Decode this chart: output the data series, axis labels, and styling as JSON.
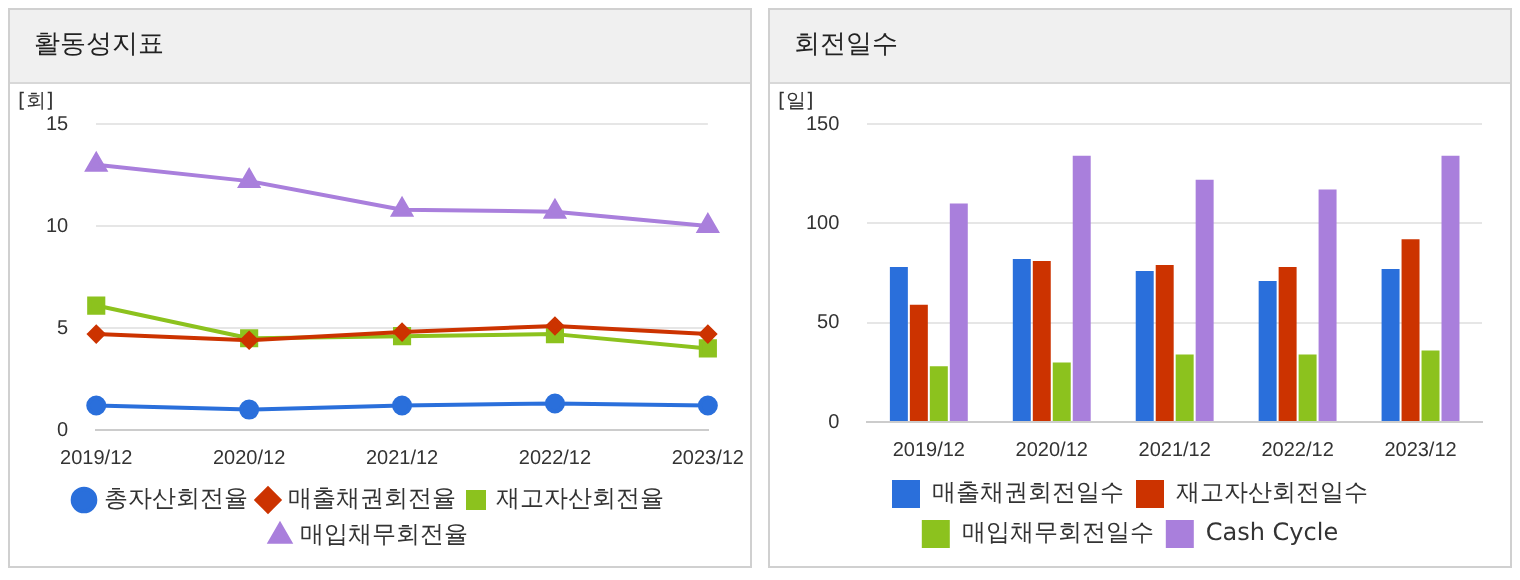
{
  "chart_data": [
    {
      "type": "line",
      "title": "활동성지표",
      "ylabel": "[회]",
      "categories": [
        "2019/12",
        "2020/12",
        "2021/12",
        "2022/12",
        "2023/12"
      ],
      "ylim": [
        0,
        15
      ],
      "yticks": [
        0,
        5,
        10,
        15
      ],
      "grid": "y",
      "legend": "bottom",
      "series": [
        {
          "name": "총자산회전율",
          "color": "#2a6fdb",
          "marker": "circle",
          "values": [
            1.2,
            1.0,
            1.2,
            1.3,
            1.2
          ]
        },
        {
          "name": "매출채권회전율",
          "color": "#cc3300",
          "marker": "diamond",
          "values": [
            4.7,
            4.4,
            4.8,
            5.1,
            4.7
          ]
        },
        {
          "name": "재고자산회전율",
          "color": "#8cc21e",
          "marker": "square",
          "values": [
            6.1,
            4.5,
            4.6,
            4.7,
            4.0
          ]
        },
        {
          "name": "매입채무회전율",
          "color": "#a97fdc",
          "marker": "triangle",
          "values": [
            13.0,
            12.2,
            10.8,
            10.7,
            10.0
          ]
        }
      ]
    },
    {
      "type": "bar",
      "title": "회전일수",
      "ylabel": "[일]",
      "categories": [
        "2019/12",
        "2020/12",
        "2021/12",
        "2022/12",
        "2023/12"
      ],
      "ylim": [
        0,
        150
      ],
      "yticks": [
        0,
        50,
        100,
        150
      ],
      "grid": "y",
      "legend": "bottom",
      "series": [
        {
          "name": "매출채권회전일수",
          "color": "#2a6fdb",
          "values": [
            78,
            82,
            76,
            71,
            77
          ]
        },
        {
          "name": "재고자산회전일수",
          "color": "#cc3300",
          "values": [
            59,
            81,
            79,
            78,
            92
          ]
        },
        {
          "name": "매입채무회전일수",
          "color": "#8cc21e",
          "values": [
            28,
            30,
            34,
            34,
            36
          ]
        },
        {
          "name": "Cash Cycle",
          "color": "#a97fdc",
          "values": [
            110,
            134,
            122,
            117,
            134
          ]
        }
      ]
    }
  ]
}
